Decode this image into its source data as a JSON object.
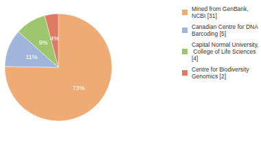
{
  "chart_data": {
    "type": "pie",
    "categories": [
      "Mined from GenBank, NCBI [31]",
      "Canadian Centre for DNA Barcoding [5]",
      "Capital Normal University, College of Life Sciences [4]",
      "Centre for Biodiversity Genomics [2]"
    ],
    "values": [
      73,
      11,
      9,
      4
    ],
    "value_labels": [
      "73%",
      "11%",
      "9%",
      "4%"
    ],
    "colors": [
      "#efab74",
      "#9fb6da",
      "#9dc66e",
      "#e07b63"
    ],
    "data_labels": true,
    "legend": "right"
  }
}
